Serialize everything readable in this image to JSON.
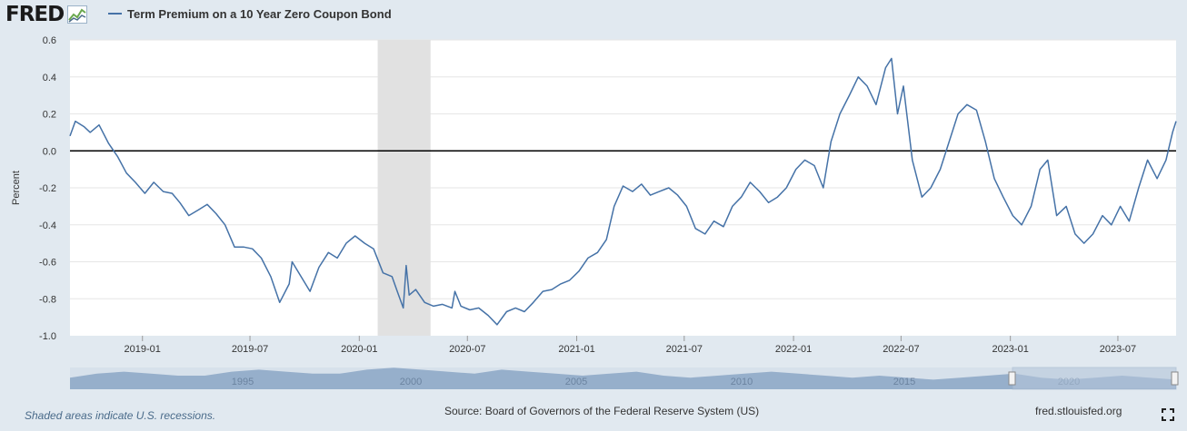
{
  "logo": {
    "text": "FRED"
  },
  "chart_data": {
    "type": "line",
    "title": "Term Premium on a 10 Year Zero Coupon Bond",
    "ylabel": "Percent",
    "ylim": [
      -1.0,
      0.6
    ],
    "xlim": [
      "2018-09-01",
      "2023-10-07"
    ],
    "grid": true,
    "legend_position": "top-left",
    "ytick_values": [
      -1.0,
      -0.8,
      -0.6,
      -0.4,
      -0.2,
      0.0,
      0.2,
      0.4,
      0.6
    ],
    "ytick_labels": [
      "-1.0",
      "-0.8",
      "-0.6",
      "-0.4",
      "-0.2",
      "0.0",
      "0.2",
      "0.4",
      "0.6"
    ],
    "xtick_values": [
      "2019-01-01",
      "2019-07-01",
      "2020-01-01",
      "2020-07-01",
      "2021-01-01",
      "2021-07-01",
      "2022-01-01",
      "2022-07-01",
      "2023-01-01",
      "2023-07-01"
    ],
    "xtick_labels": [
      "2019-01",
      "2019-07",
      "2020-01",
      "2020-07",
      "2021-01",
      "2021-07",
      "2022-01",
      "2022-07",
      "2023-01",
      "2023-07"
    ],
    "reference_line": 0.0,
    "recessions": [
      [
        "2020-02-01",
        "2020-04-30"
      ]
    ],
    "series": [
      {
        "name": "Term Premium on a 10 Year Zero Coupon Bond",
        "color": "#4572a7",
        "points": [
          [
            "2018-09-01",
            0.08
          ],
          [
            "2018-09-10",
            0.16
          ],
          [
            "2018-09-25",
            0.13
          ],
          [
            "2018-10-05",
            0.1
          ],
          [
            "2018-10-20",
            0.14
          ],
          [
            "2018-11-05",
            0.04
          ],
          [
            "2018-11-20",
            -0.03
          ],
          [
            "2018-12-05",
            -0.12
          ],
          [
            "2018-12-20",
            -0.17
          ],
          [
            "2019-01-05",
            -0.23
          ],
          [
            "2019-01-20",
            -0.17
          ],
          [
            "2019-02-05",
            -0.22
          ],
          [
            "2019-02-20",
            -0.23
          ],
          [
            "2019-03-05",
            -0.28
          ],
          [
            "2019-03-20",
            -0.35
          ],
          [
            "2019-04-05",
            -0.32
          ],
          [
            "2019-04-20",
            -0.29
          ],
          [
            "2019-05-05",
            -0.34
          ],
          [
            "2019-05-20",
            -0.4
          ],
          [
            "2019-06-05",
            -0.52
          ],
          [
            "2019-06-20",
            -0.52
          ],
          [
            "2019-07-05",
            -0.53
          ],
          [
            "2019-07-20",
            -0.58
          ],
          [
            "2019-08-05",
            -0.68
          ],
          [
            "2019-08-20",
            -0.82
          ],
          [
            "2019-09-05",
            -0.72
          ],
          [
            "2019-09-10",
            -0.6
          ],
          [
            "2019-09-25",
            -0.68
          ],
          [
            "2019-10-10",
            -0.76
          ],
          [
            "2019-10-25",
            -0.63
          ],
          [
            "2019-11-10",
            -0.55
          ],
          [
            "2019-11-25",
            -0.58
          ],
          [
            "2019-12-10",
            -0.5
          ],
          [
            "2019-12-25",
            -0.46
          ],
          [
            "2020-01-10",
            -0.5
          ],
          [
            "2020-01-25",
            -0.53
          ],
          [
            "2020-02-10",
            -0.66
          ],
          [
            "2020-02-25",
            -0.68
          ],
          [
            "2020-03-05",
            -0.76
          ],
          [
            "2020-03-15",
            -0.85
          ],
          [
            "2020-03-20",
            -0.62
          ],
          [
            "2020-03-25",
            -0.78
          ],
          [
            "2020-04-05",
            -0.75
          ],
          [
            "2020-04-20",
            -0.82
          ],
          [
            "2020-05-05",
            -0.84
          ],
          [
            "2020-05-20",
            -0.83
          ],
          [
            "2020-06-05",
            -0.85
          ],
          [
            "2020-06-10",
            -0.76
          ],
          [
            "2020-06-20",
            -0.84
          ],
          [
            "2020-07-05",
            -0.86
          ],
          [
            "2020-07-20",
            -0.85
          ],
          [
            "2020-08-05",
            -0.89
          ],
          [
            "2020-08-20",
            -0.94
          ],
          [
            "2020-09-05",
            -0.87
          ],
          [
            "2020-09-20",
            -0.85
          ],
          [
            "2020-10-05",
            -0.87
          ],
          [
            "2020-10-20",
            -0.82
          ],
          [
            "2020-11-05",
            -0.76
          ],
          [
            "2020-11-20",
            -0.75
          ],
          [
            "2020-12-05",
            -0.72
          ],
          [
            "2020-12-20",
            -0.7
          ],
          [
            "2021-01-05",
            -0.65
          ],
          [
            "2021-01-20",
            -0.58
          ],
          [
            "2021-02-05",
            -0.55
          ],
          [
            "2021-02-20",
            -0.48
          ],
          [
            "2021-03-05",
            -0.3
          ],
          [
            "2021-03-20",
            -0.19
          ],
          [
            "2021-04-05",
            -0.22
          ],
          [
            "2021-04-20",
            -0.18
          ],
          [
            "2021-05-05",
            -0.24
          ],
          [
            "2021-05-20",
            -0.22
          ],
          [
            "2021-06-05",
            -0.2
          ],
          [
            "2021-06-20",
            -0.24
          ],
          [
            "2021-07-05",
            -0.3
          ],
          [
            "2021-07-20",
            -0.42
          ],
          [
            "2021-08-05",
            -0.45
          ],
          [
            "2021-08-20",
            -0.38
          ],
          [
            "2021-09-05",
            -0.41
          ],
          [
            "2021-09-20",
            -0.3
          ],
          [
            "2021-10-05",
            -0.25
          ],
          [
            "2021-10-20",
            -0.17
          ],
          [
            "2021-11-05",
            -0.22
          ],
          [
            "2021-11-20",
            -0.28
          ],
          [
            "2021-12-05",
            -0.25
          ],
          [
            "2021-12-20",
            -0.2
          ],
          [
            "2022-01-05",
            -0.1
          ],
          [
            "2022-01-20",
            -0.05
          ],
          [
            "2022-02-05",
            -0.08
          ],
          [
            "2022-02-20",
            -0.2
          ],
          [
            "2022-03-05",
            0.05
          ],
          [
            "2022-03-20",
            0.2
          ],
          [
            "2022-04-05",
            0.3
          ],
          [
            "2022-04-20",
            0.4
          ],
          [
            "2022-05-05",
            0.35
          ],
          [
            "2022-05-20",
            0.25
          ],
          [
            "2022-06-05",
            0.45
          ],
          [
            "2022-06-15",
            0.5
          ],
          [
            "2022-06-25",
            0.2
          ],
          [
            "2022-07-05",
            0.35
          ],
          [
            "2022-07-20",
            -0.05
          ],
          [
            "2022-08-05",
            -0.25
          ],
          [
            "2022-08-20",
            -0.2
          ],
          [
            "2022-09-05",
            -0.1
          ],
          [
            "2022-09-20",
            0.05
          ],
          [
            "2022-10-05",
            0.2
          ],
          [
            "2022-10-20",
            0.25
          ],
          [
            "2022-11-05",
            0.22
          ],
          [
            "2022-11-20",
            0.05
          ],
          [
            "2022-12-05",
            -0.15
          ],
          [
            "2022-12-20",
            -0.25
          ],
          [
            "2023-01-05",
            -0.35
          ],
          [
            "2023-01-20",
            -0.4
          ],
          [
            "2023-02-05",
            -0.3
          ],
          [
            "2023-02-20",
            -0.1
          ],
          [
            "2023-03-05",
            -0.05
          ],
          [
            "2023-03-20",
            -0.35
          ],
          [
            "2023-04-05",
            -0.3
          ],
          [
            "2023-04-20",
            -0.45
          ],
          [
            "2023-05-05",
            -0.5
          ],
          [
            "2023-05-20",
            -0.45
          ],
          [
            "2023-06-05",
            -0.35
          ],
          [
            "2023-06-20",
            -0.4
          ],
          [
            "2023-07-05",
            -0.3
          ],
          [
            "2023-07-20",
            -0.38
          ],
          [
            "2023-08-05",
            -0.2
          ],
          [
            "2023-08-20",
            -0.05
          ],
          [
            "2023-09-05",
            -0.15
          ],
          [
            "2023-09-20",
            -0.05
          ],
          [
            "2023-10-01",
            0.1
          ],
          [
            "2023-10-07",
            0.16
          ]
        ]
      }
    ]
  },
  "navigator": {
    "labels": [
      "1995",
      "2000",
      "2005",
      "2010",
      "2015",
      "2020"
    ],
    "fill_color": "#8ba6c6"
  },
  "footer": {
    "note": "Shaded areas indicate U.S. recessions.",
    "source": "Source: Board of Governors of the Federal Reserve System (US)",
    "url": "fred.stlouisfed.org"
  },
  "icons": {
    "fullscreen": "fullscreen-icon",
    "logo_mark": "chart-line-icon"
  }
}
